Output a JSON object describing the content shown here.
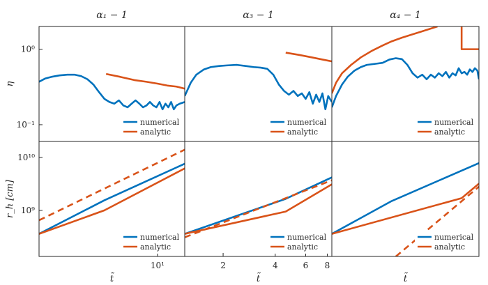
{
  "colors": {
    "numerical": "#0072BD",
    "analytic": "#D95319",
    "axis": "#262626"
  },
  "chart_data": [
    {
      "type": "line",
      "panel_row": 0,
      "panel_col": 0,
      "title": "α₁ − 1",
      "ylabel": "η",
      "xlabel": "",
      "xscale": "log",
      "yscale": "log",
      "xlim": [
        3.2,
        13
      ],
      "ylim": [
        0.06,
        2.0
      ],
      "y_ticks": [
        {
          "value": 1,
          "label": "10⁰"
        },
        {
          "value": 0.1,
          "label": "10⁻¹"
        }
      ],
      "x_ticks": [],
      "legend_placement": "bottom-right",
      "series": [
        {
          "name": "numerical",
          "style": "solid",
          "color": "#0072BD",
          "points": [
            [
              3.2,
              0.37
            ],
            [
              3.4,
              0.41
            ],
            [
              3.6,
              0.43
            ],
            [
              3.9,
              0.45
            ],
            [
              4.2,
              0.46
            ],
            [
              4.5,
              0.46
            ],
            [
              4.8,
              0.44
            ],
            [
              5.1,
              0.4
            ],
            [
              5.4,
              0.34
            ],
            [
              5.7,
              0.27
            ],
            [
              6.0,
              0.22
            ],
            [
              6.3,
              0.2
            ],
            [
              6.6,
              0.19
            ],
            [
              6.9,
              0.21
            ],
            [
              7.2,
              0.18
            ],
            [
              7.5,
              0.17
            ],
            [
              7.8,
              0.19
            ],
            [
              8.1,
              0.21
            ],
            [
              8.4,
              0.19
            ],
            [
              8.7,
              0.17
            ],
            [
              9.0,
              0.18
            ],
            [
              9.3,
              0.2
            ],
            [
              9.6,
              0.18
            ],
            [
              9.9,
              0.17
            ],
            [
              10.2,
              0.2
            ],
            [
              10.5,
              0.16
            ],
            [
              10.8,
              0.19
            ],
            [
              11.1,
              0.17
            ],
            [
              11.4,
              0.2
            ],
            [
              11.7,
              0.16
            ],
            [
              12.0,
              0.18
            ],
            [
              12.4,
              0.19
            ],
            [
              13.0,
              0.2
            ]
          ]
        },
        {
          "name": "analytic",
          "style": "solid",
          "color": "#D95319",
          "points": [
            [
              6.1,
              0.47
            ],
            [
              7.0,
              0.43
            ],
            [
              8.0,
              0.39
            ],
            [
              9.0,
              0.37
            ],
            [
              10.0,
              0.35
            ],
            [
              11.0,
              0.33
            ],
            [
              12.0,
              0.32
            ],
            [
              13.0,
              0.3
            ]
          ]
        }
      ]
    },
    {
      "type": "line",
      "panel_row": 0,
      "panel_col": 1,
      "title": "α₃ − 1",
      "ylabel": "",
      "xlabel": "",
      "xscale": "log",
      "yscale": "log",
      "xlim": [
        1.2,
        8.5
      ],
      "ylim": [
        0.06,
        2.0
      ],
      "y_ticks": [],
      "x_ticks": [],
      "legend_placement": "bottom-right",
      "series": [
        {
          "name": "numerical",
          "style": "solid",
          "color": "#0072BD",
          "points": [
            [
              1.2,
              0.24
            ],
            [
              1.3,
              0.36
            ],
            [
              1.4,
              0.46
            ],
            [
              1.55,
              0.54
            ],
            [
              1.7,
              0.58
            ],
            [
              1.9,
              0.6
            ],
            [
              2.1,
              0.61
            ],
            [
              2.4,
              0.62
            ],
            [
              2.7,
              0.6
            ],
            [
              3.0,
              0.58
            ],
            [
              3.3,
              0.57
            ],
            [
              3.6,
              0.55
            ],
            [
              3.9,
              0.46
            ],
            [
              4.2,
              0.34
            ],
            [
              4.5,
              0.28
            ],
            [
              4.8,
              0.25
            ],
            [
              5.1,
              0.28
            ],
            [
              5.4,
              0.24
            ],
            [
              5.7,
              0.26
            ],
            [
              6.0,
              0.22
            ],
            [
              6.3,
              0.27
            ],
            [
              6.6,
              0.19
            ],
            [
              6.9,
              0.25
            ],
            [
              7.2,
              0.2
            ],
            [
              7.5,
              0.26
            ],
            [
              7.8,
              0.16
            ],
            [
              8.1,
              0.24
            ],
            [
              8.5,
              0.2
            ]
          ]
        },
        {
          "name": "analytic",
          "style": "solid",
          "color": "#D95319",
          "points": [
            [
              4.6,
              0.9
            ],
            [
              5.5,
              0.84
            ],
            [
              6.5,
              0.78
            ],
            [
              7.5,
              0.73
            ],
            [
              8.5,
              0.69
            ]
          ]
        }
      ]
    },
    {
      "type": "line",
      "panel_row": 0,
      "panel_col": 2,
      "title": "α₄ − 1",
      "ylabel": "",
      "xlabel": "",
      "xscale": "log",
      "yscale": "log",
      "xlim": [
        2.0,
        11
      ],
      "ylim": [
        0.06,
        2.0
      ],
      "y_ticks": [],
      "x_ticks": [],
      "legend_placement": "bottom-right",
      "series": [
        {
          "name": "numerical",
          "style": "solid",
          "color": "#0072BD",
          "points": [
            [
              2.0,
              0.17
            ],
            [
              2.1,
              0.24
            ],
            [
              2.25,
              0.34
            ],
            [
              2.4,
              0.43
            ],
            [
              2.6,
              0.52
            ],
            [
              2.8,
              0.58
            ],
            [
              3.0,
              0.62
            ],
            [
              3.3,
              0.64
            ],
            [
              3.6,
              0.66
            ],
            [
              3.9,
              0.73
            ],
            [
              4.2,
              0.76
            ],
            [
              4.5,
              0.74
            ],
            [
              4.8,
              0.62
            ],
            [
              5.1,
              0.48
            ],
            [
              5.4,
              0.42
            ],
            [
              5.7,
              0.46
            ],
            [
              6.0,
              0.4
            ],
            [
              6.3,
              0.46
            ],
            [
              6.6,
              0.42
            ],
            [
              6.9,
              0.48
            ],
            [
              7.2,
              0.44
            ],
            [
              7.5,
              0.5
            ],
            [
              7.8,
              0.42
            ],
            [
              8.1,
              0.48
            ],
            [
              8.4,
              0.45
            ],
            [
              8.7,
              0.56
            ],
            [
              9.0,
              0.48
            ],
            [
              9.3,
              0.5
            ],
            [
              9.6,
              0.46
            ],
            [
              9.9,
              0.54
            ],
            [
              10.2,
              0.5
            ],
            [
              10.5,
              0.56
            ],
            [
              10.8,
              0.52
            ],
            [
              11.0,
              0.4
            ]
          ]
        },
        {
          "name": "analytic",
          "style": "solid",
          "color": "#D95319",
          "points": [
            [
              2.0,
              0.26
            ],
            [
              2.1,
              0.36
            ],
            [
              2.25,
              0.48
            ],
            [
              2.5,
              0.62
            ],
            [
              2.8,
              0.78
            ],
            [
              3.2,
              0.96
            ],
            [
              3.6,
              1.12
            ],
            [
              4.0,
              1.27
            ],
            [
              4.5,
              1.42
            ],
            [
              5.0,
              1.55
            ],
            [
              5.6,
              1.7
            ],
            [
              6.2,
              1.85
            ],
            [
              6.8,
              2.0
            ]
          ]
        },
        {
          "name": "",
          "style": "solid",
          "color": "#D95319",
          "points": [
            [
              9.0,
              2.0
            ],
            [
              9.0,
              1.0
            ],
            [
              11.0,
              1.0
            ]
          ]
        }
      ]
    },
    {
      "type": "line",
      "panel_row": 1,
      "panel_col": 0,
      "title": "",
      "ylabel": "r_h [cm]",
      "xlabel": "t̃",
      "xscale": "log",
      "yscale": "log",
      "xlim": [
        3.2,
        13
      ],
      "ylim": [
        135000000.0,
        20000000000.0
      ],
      "y_ticks": [
        {
          "value": 10000000000.0,
          "label": "10¹⁰"
        },
        {
          "value": 1000000000.0,
          "label": "10⁹"
        }
      ],
      "x_ticks": [
        {
          "value": 10,
          "label": "10¹"
        }
      ],
      "legend_placement": "bottom-right",
      "series": [
        {
          "name": "numerical",
          "style": "solid",
          "color": "#0072BD",
          "points": [
            [
              3.2,
              360000000.0
            ],
            [
              6.0,
              1550000000.0
            ],
            [
              13.0,
              7600000000.0
            ]
          ]
        },
        {
          "name": "analytic",
          "style": "solid",
          "color": "#D95319",
          "points": [
            [
              3.2,
              360000000.0
            ],
            [
              6.0,
              1000000000.0
            ],
            [
              13.0,
              6200000000.0
            ]
          ]
        },
        {
          "name": "",
          "style": "dashed",
          "color": "#D95319",
          "points": [
            [
              3.2,
              650000000.0
            ],
            [
              13.0,
              14000000000.0
            ]
          ]
        }
      ]
    },
    {
      "type": "line",
      "panel_row": 1,
      "panel_col": 1,
      "title": "",
      "ylabel": "",
      "xlabel": "t̃",
      "xscale": "log",
      "yscale": "log",
      "xlim": [
        1.2,
        8.5
      ],
      "ylim": [
        135000000.0,
        20000000000.0
      ],
      "y_ticks": [],
      "x_ticks": [
        {
          "value": 2,
          "label": "2"
        },
        {
          "value": 4,
          "label": "4"
        },
        {
          "value": 6,
          "label": "6"
        },
        {
          "value": 8,
          "label": "8"
        }
      ],
      "legend_placement": "bottom-right",
      "series": [
        {
          "name": "numerical",
          "style": "solid",
          "color": "#0072BD",
          "points": [
            [
              1.2,
              360000000.0
            ],
            [
              4.6,
              1650000000.0
            ],
            [
              8.5,
              4200000000.0
            ]
          ]
        },
        {
          "name": "analytic",
          "style": "solid",
          "color": "#D95319",
          "points": [
            [
              1.2,
              360000000.0
            ],
            [
              4.6,
              950000000.0
            ],
            [
              8.5,
              3100000000.0
            ]
          ]
        },
        {
          "name": "",
          "style": "dashed",
          "color": "#D95319",
          "points": [
            [
              1.2,
              310000000.0
            ],
            [
              8.5,
              3700000000.0
            ]
          ]
        }
      ]
    },
    {
      "type": "line",
      "panel_row": 1,
      "panel_col": 2,
      "title": "",
      "ylabel": "",
      "xlabel": "t̃",
      "xscale": "log",
      "yscale": "log",
      "xlim": [
        2.0,
        11
      ],
      "ylim": [
        135000000.0,
        20000000000.0
      ],
      "y_ticks": [],
      "x_ticks": [],
      "legend_placement": "bottom-right",
      "series": [
        {
          "name": "numerical",
          "style": "solid",
          "color": "#0072BD",
          "points": [
            [
              2.0,
              360000000.0
            ],
            [
              4.0,
              1500000000.0
            ],
            [
              11.0,
              7800000000.0
            ]
          ]
        },
        {
          "name": "analytic",
          "style": "solid",
          "color": "#D95319",
          "points": [
            [
              2.0,
              360000000.0
            ],
            [
              9.0,
              1700000000.0
            ],
            [
              11.0,
              3200000000.0
            ]
          ]
        },
        {
          "name": "",
          "style": "dashed",
          "color": "#D95319",
          "points": [
            [
              4.2,
              135000000.0
            ],
            [
              11.0,
              2800000000.0
            ]
          ]
        }
      ]
    }
  ],
  "legend": {
    "numerical": "numerical",
    "analytic": "analytic"
  }
}
